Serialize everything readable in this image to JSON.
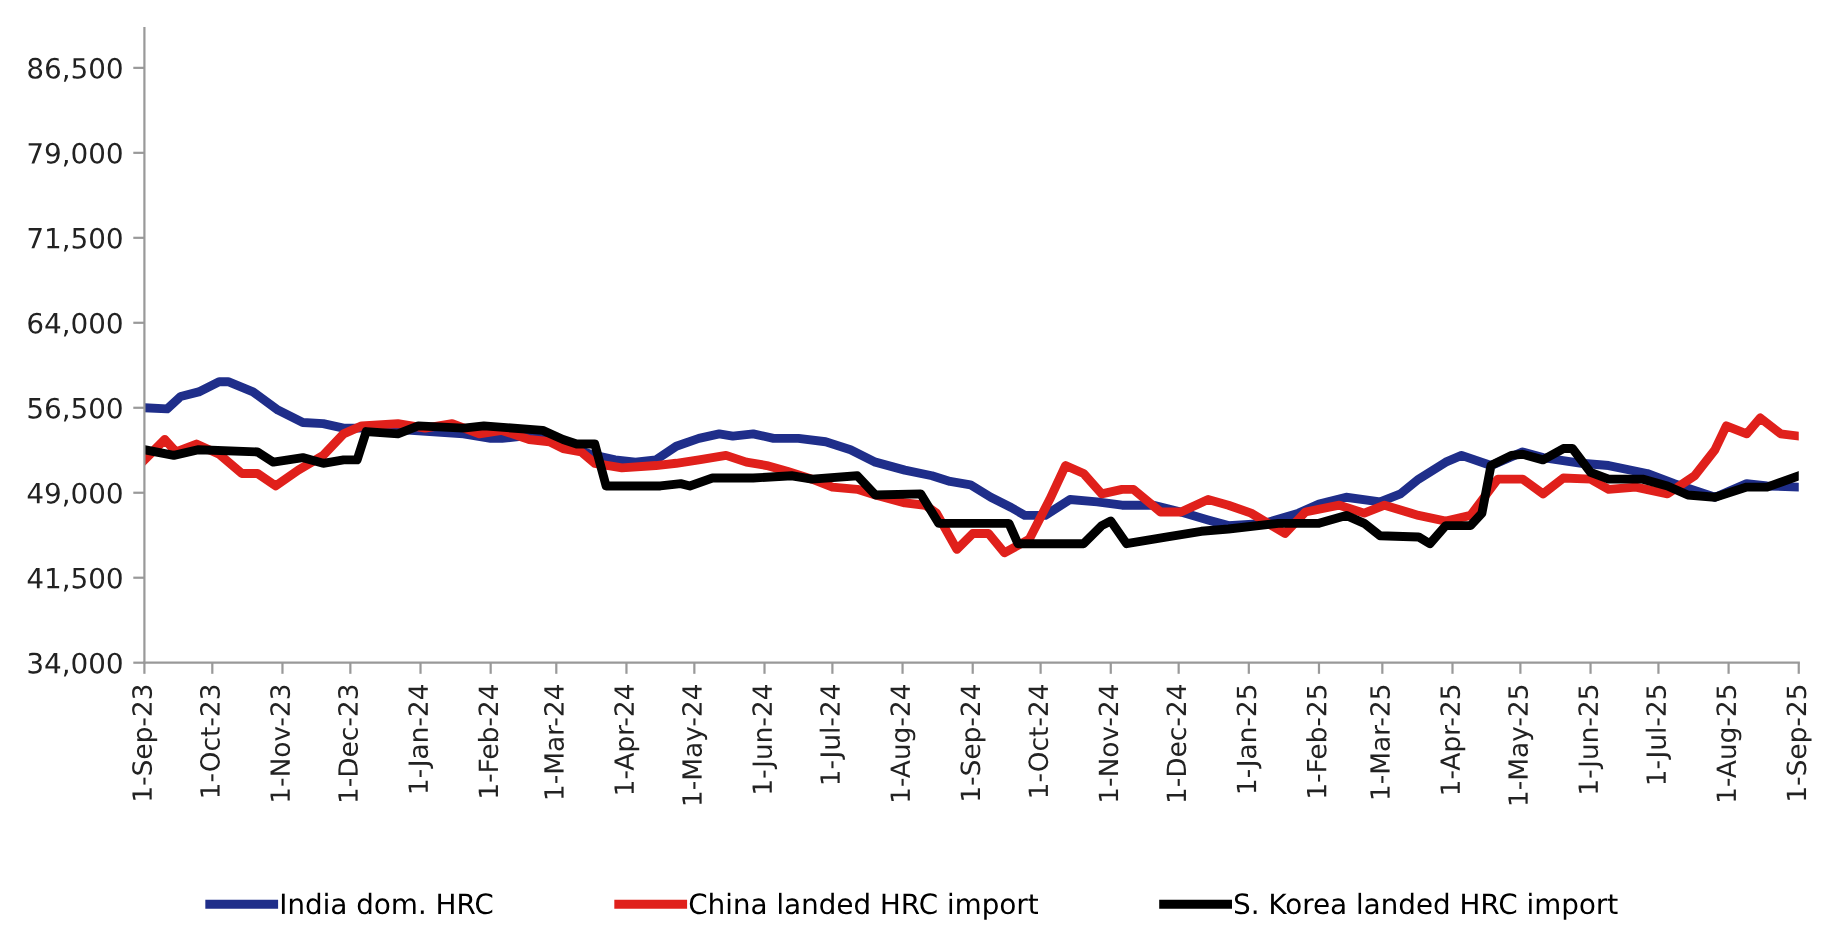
{
  "chart_data": {
    "type": "line",
    "legend": "bottom",
    "grid": false,
    "line_style": "solid",
    "marker": "none",
    "xlim": [
      "2023-09-01",
      "2025-09-01"
    ],
    "ylim": [
      34000,
      90000
    ],
    "yticks": [
      {
        "value": 34000,
        "label": "34,000"
      },
      {
        "value": 41500,
        "label": "41,500"
      },
      {
        "value": 49000,
        "label": "49,000"
      },
      {
        "value": 56500,
        "label": "56,500"
      },
      {
        "value": 64000,
        "label": "64,000"
      },
      {
        "value": 71500,
        "label": "71,500"
      },
      {
        "value": 79000,
        "label": "79,000"
      },
      {
        "value": 86500,
        "label": "86,500"
      }
    ],
    "xticks": [
      {
        "value": "2023-09-01",
        "label": "1-Sep-23"
      },
      {
        "value": "2023-10-01",
        "label": "1-Oct-23"
      },
      {
        "value": "2023-11-01",
        "label": "1-Nov-23"
      },
      {
        "value": "2023-12-01",
        "label": "1-Dec-23"
      },
      {
        "value": "2024-01-01",
        "label": "1-Jan-24"
      },
      {
        "value": "2024-02-01",
        "label": "1-Feb-24"
      },
      {
        "value": "2024-03-01",
        "label": "1-Mar-24"
      },
      {
        "value": "2024-04-01",
        "label": "1-Apr-24"
      },
      {
        "value": "2024-05-01",
        "label": "1-May-24"
      },
      {
        "value": "2024-06-01",
        "label": "1-Jun-24"
      },
      {
        "value": "2024-07-01",
        "label": "1-Jul-24"
      },
      {
        "value": "2024-08-01",
        "label": "1-Aug-24"
      },
      {
        "value": "2024-09-01",
        "label": "1-Sep-24"
      },
      {
        "value": "2024-10-01",
        "label": "1-Oct-24"
      },
      {
        "value": "2024-11-01",
        "label": "1-Nov-24"
      },
      {
        "value": "2024-12-01",
        "label": "1-Dec-24"
      },
      {
        "value": "2025-01-01",
        "label": "1-Jan-25"
      },
      {
        "value": "2025-02-01",
        "label": "1-Feb-25"
      },
      {
        "value": "2025-03-01",
        "label": "1-Mar-25"
      },
      {
        "value": "2025-04-01",
        "label": "1-Apr-25"
      },
      {
        "value": "2025-05-01",
        "label": "1-May-25"
      },
      {
        "value": "2025-06-01",
        "label": "1-Jun-25"
      },
      {
        "value": "2025-07-01",
        "label": "1-Jul-25"
      },
      {
        "value": "2025-08-01",
        "label": "1-Aug-25"
      },
      {
        "value": "2025-09-01",
        "label": "1-Sep-25"
      }
    ],
    "series": [
      {
        "name": "India dom. HRC",
        "color": "#1f2e8a",
        "x": [
          "2023-09-01",
          "2023-09-11",
          "2023-09-17",
          "2023-09-25",
          "2023-10-04",
          "2023-10-08",
          "2023-10-19",
          "2023-10-30",
          "2023-11-10",
          "2023-11-19",
          "2023-11-28",
          "2023-12-13",
          "2024-01-20",
          "2024-02-01",
          "2024-02-06",
          "2024-02-24",
          "2024-03-04",
          "2024-03-16",
          "2024-03-27",
          "2024-04-05",
          "2024-04-14",
          "2024-04-23",
          "2024-05-03",
          "2024-05-12",
          "2024-05-18",
          "2024-05-27",
          "2024-06-05",
          "2024-06-16",
          "2024-06-28",
          "2024-07-09",
          "2024-07-20",
          "2024-08-02",
          "2024-08-14",
          "2024-08-22",
          "2024-08-31",
          "2024-09-09",
          "2024-09-18",
          "2024-09-24",
          "2024-10-03",
          "2024-10-14",
          "2024-10-26",
          "2024-11-06",
          "2024-11-20",
          "2024-12-02",
          "2024-12-14",
          "2024-12-23",
          "2025-01-08",
          "2025-01-23",
          "2025-02-01",
          "2025-02-13",
          "2025-02-28",
          "2025-03-09",
          "2025-03-17",
          "2025-03-29",
          "2025-04-05",
          "2025-04-18",
          "2025-05-02",
          "2025-05-11",
          "2025-05-28",
          "2025-06-09",
          "2025-06-26",
          "2025-07-08",
          "2025-07-26",
          "2025-08-09",
          "2025-08-18",
          "2025-09-01"
        ],
        "values": [
          56500,
          56400,
          57500,
          57900,
          58800,
          58800,
          57900,
          56300,
          55200,
          55100,
          54700,
          54700,
          54200,
          53800,
          53800,
          54200,
          53300,
          52400,
          51900,
          51700,
          51900,
          53100,
          53800,
          54200,
          54000,
          54200,
          53800,
          53800,
          53500,
          52800,
          51700,
          51000,
          50500,
          50000,
          49700,
          48600,
          47700,
          47000,
          47000,
          48400,
          48200,
          47900,
          47900,
          47300,
          46600,
          46100,
          46300,
          47200,
          48000,
          48600,
          48200,
          48900,
          50200,
          51700,
          52300,
          51400,
          52600,
          52100,
          51600,
          51400,
          50700,
          49800,
          48600,
          49800,
          49600,
          49500
        ]
      },
      {
        "name": "China landed HRC import",
        "color": "#e0201b",
        "x": [
          "2023-09-01",
          "2023-09-10",
          "2023-09-15",
          "2023-09-24",
          "2023-10-04",
          "2023-10-14",
          "2023-10-21",
          "2023-10-29",
          "2023-11-08",
          "2023-11-19",
          "2023-11-28",
          "2023-12-06",
          "2023-12-22",
          "2024-01-03",
          "2024-01-15",
          "2024-01-27",
          "2024-02-06",
          "2024-02-18",
          "2024-02-27",
          "2024-03-04",
          "2024-03-12",
          "2024-03-18",
          "2024-03-30",
          "2024-04-14",
          "2024-04-23",
          "2024-05-03",
          "2024-05-15",
          "2024-05-24",
          "2024-06-02",
          "2024-06-11",
          "2024-06-22",
          "2024-07-01",
          "2024-07-12",
          "2024-07-20",
          "2024-08-02",
          "2024-08-11",
          "2024-08-16",
          "2024-08-25",
          "2024-09-01",
          "2024-09-08",
          "2024-09-15",
          "2024-09-26",
          "2024-10-05",
          "2024-10-12",
          "2024-10-20",
          "2024-10-28",
          "2024-11-06",
          "2024-11-11",
          "2024-11-23",
          "2024-12-02",
          "2024-12-14",
          "2024-12-23",
          "2025-01-02",
          "2025-01-17",
          "2025-01-26",
          "2025-02-10",
          "2025-02-21",
          "2025-03-02",
          "2025-03-17",
          "2025-03-29",
          "2025-04-09",
          "2025-04-21",
          "2025-05-02",
          "2025-05-11",
          "2025-05-20",
          "2025-06-01",
          "2025-06-09",
          "2025-06-21",
          "2025-07-05",
          "2025-07-17",
          "2025-07-26",
          "2025-07-31",
          "2025-08-09",
          "2025-08-15",
          "2025-08-24",
          "2025-09-01"
        ],
        "values": [
          51900,
          53700,
          52600,
          53300,
          52400,
          50700,
          50700,
          49600,
          51000,
          52300,
          54200,
          54900,
          55100,
          54700,
          55100,
          54200,
          54500,
          53700,
          53500,
          52900,
          52600,
          51600,
          51200,
          51400,
          51600,
          51900,
          52300,
          51700,
          51400,
          50900,
          50200,
          49500,
          49300,
          48800,
          48100,
          47900,
          47200,
          44000,
          45400,
          45400,
          43700,
          44900,
          48400,
          51400,
          50700,
          48900,
          49300,
          49300,
          47300,
          47300,
          48400,
          47900,
          47200,
          45400,
          47300,
          47900,
          47200,
          47900,
          47000,
          46500,
          47000,
          50200,
          50200,
          48900,
          50300,
          50200,
          49300,
          49500,
          48900,
          50500,
          52800,
          54900,
          54200,
          55600,
          54200,
          54000
        ]
      },
      {
        "name": "S. Korea landed HRC import",
        "color": "#000000",
        "x": [
          "2023-09-01",
          "2023-09-14",
          "2023-09-25",
          "2023-10-21",
          "2023-10-28",
          "2023-11-10",
          "2023-11-19",
          "2023-11-28",
          "2023-12-04",
          "2023-12-08",
          "2023-12-22",
          "2023-12-31",
          "2024-01-20",
          "2024-01-29",
          "2024-02-24",
          "2024-03-04",
          "2024-03-10",
          "2024-03-18",
          "2024-03-23",
          "2024-04-05",
          "2024-04-16",
          "2024-04-25",
          "2024-04-29",
          "2024-05-09",
          "2024-05-27",
          "2024-06-13",
          "2024-06-22",
          "2024-07-12",
          "2024-07-20",
          "2024-08-09",
          "2024-08-17",
          "2024-09-17",
          "2024-09-21",
          "2024-10-07",
          "2024-10-20",
          "2024-10-28",
          "2024-11-01",
          "2024-11-08",
          "2024-11-26",
          "2024-12-11",
          "2024-12-23",
          "2025-01-14",
          "2025-02-01",
          "2025-02-13",
          "2025-02-21",
          "2025-02-28",
          "2025-03-17",
          "2025-03-22",
          "2025-03-29",
          "2025-04-09",
          "2025-04-14",
          "2025-04-18",
          "2025-04-27",
          "2025-05-02",
          "2025-05-11",
          "2025-05-20",
          "2025-05-24",
          "2025-06-01",
          "2025-06-09",
          "2025-06-24",
          "2025-07-05",
          "2025-07-14",
          "2025-07-26",
          "2025-08-09",
          "2025-08-18",
          "2025-09-01"
        ],
        "values": [
          52800,
          52300,
          52800,
          52600,
          51700,
          52100,
          51600,
          51900,
          51900,
          54400,
          54200,
          54900,
          54700,
          54900,
          54500,
          53700,
          53300,
          53300,
          49600,
          49600,
          49600,
          49800,
          49600,
          50300,
          50300,
          50500,
          50200,
          50500,
          48800,
          48900,
          46300,
          46300,
          44500,
          44500,
          44500,
          46100,
          46500,
          44500,
          45100,
          45600,
          45800,
          46300,
          46300,
          47000,
          46300,
          45200,
          45100,
          44500,
          46100,
          46100,
          47200,
          51400,
          52300,
          52400,
          51900,
          52900,
          52900,
          50800,
          50200,
          50200,
          49600,
          48800,
          48600,
          49500,
          49500,
          50500
        ]
      }
    ]
  }
}
